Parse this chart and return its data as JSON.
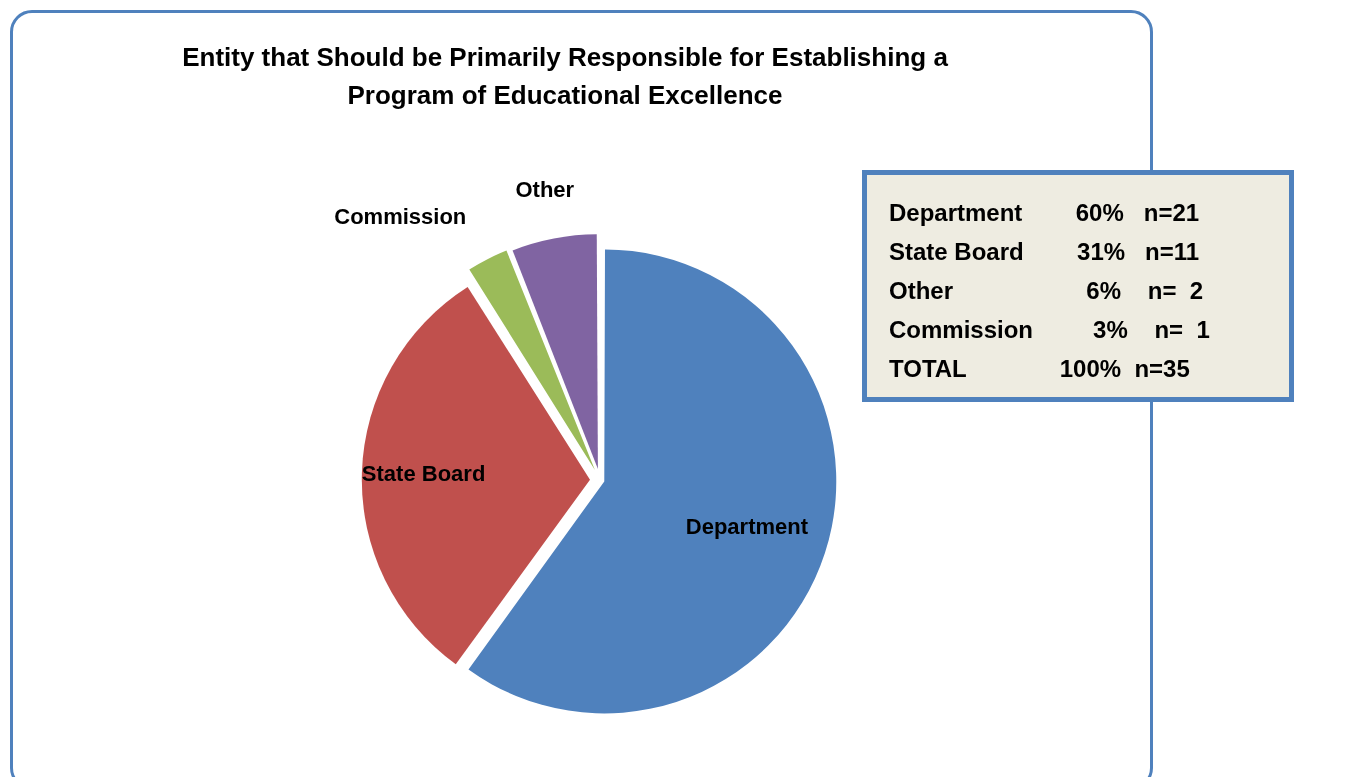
{
  "chart_data": {
    "type": "pie",
    "title": "Entity that Should be Primarily Responsible for Establishing a Program of Educational Excellence",
    "categories": [
      "Department",
      "State Board",
      "Commission",
      "Other"
    ],
    "values": [
      60,
      31,
      3,
      6
    ],
    "colors": [
      "#4f81bd",
      "#c0504d",
      "#9bbb59",
      "#8064a2"
    ],
    "legend": false,
    "annotations": [
      "Department        60%   n=21",
      "State Board        31%   n=11",
      "Other                    6%    n=  2",
      "Commission         3%    n=  1",
      "TOTAL              100%  n=35"
    ]
  }
}
